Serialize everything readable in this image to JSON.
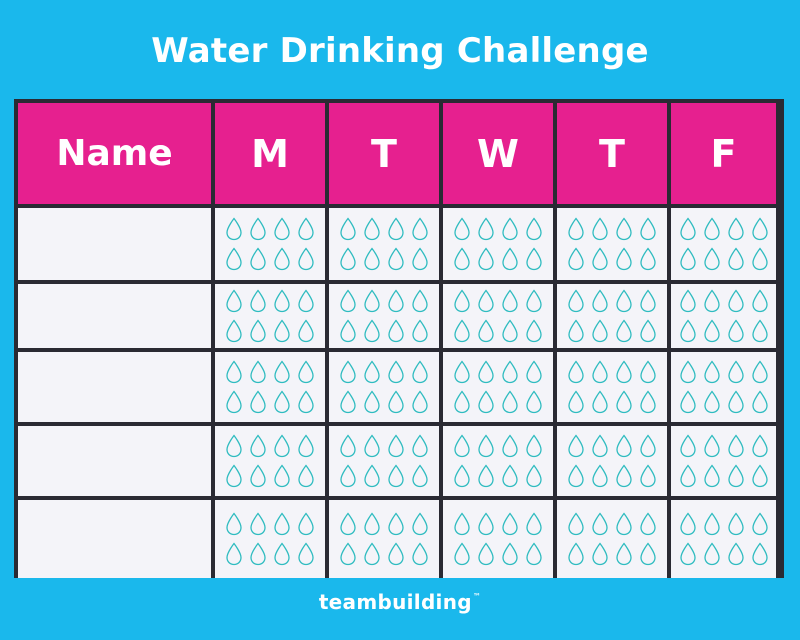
{
  "title": "Water Drinking Challenge",
  "table": {
    "headers": [
      "Name",
      "M",
      "T",
      "W",
      "T",
      "F"
    ],
    "row_count": 5,
    "drops_per_cell": 8
  },
  "footer": {
    "brand": "teambuilding",
    "trademark": "™"
  },
  "colors": {
    "background": "#1ab8ec",
    "header": "#e6208f",
    "cell": "#f4f4f9",
    "grid_line": "#2a2a33",
    "drop_outline": "#2fbcc0"
  },
  "icons": {
    "drop": "water-drop-icon"
  }
}
